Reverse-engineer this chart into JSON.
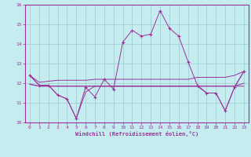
{
  "background_color": "#c5edf0",
  "grid_color": "#9ac8d0",
  "line_color": "#993399",
  "xlim": [
    -0.5,
    23.5
  ],
  "ylim": [
    10,
    16
  ],
  "xticks": [
    0,
    1,
    2,
    3,
    4,
    5,
    6,
    7,
    8,
    9,
    10,
    11,
    12,
    13,
    14,
    15,
    16,
    17,
    18,
    19,
    20,
    21,
    22,
    23
  ],
  "yticks": [
    10,
    11,
    12,
    13,
    14,
    15,
    16
  ],
  "xlabel": "Windchill (Refroidissement éolien,°C)",
  "line_main": [
    12.4,
    11.9,
    11.9,
    11.4,
    11.2,
    10.2,
    11.8,
    11.3,
    12.2,
    11.7,
    14.1,
    14.7,
    14.4,
    14.5,
    15.7,
    14.8,
    14.4,
    13.1,
    11.9,
    11.5,
    11.5,
    10.6,
    11.8,
    12.6
  ],
  "line_rising": [
    12.4,
    12.05,
    12.1,
    12.15,
    12.15,
    12.15,
    12.15,
    12.2,
    12.2,
    12.2,
    12.2,
    12.2,
    12.2,
    12.2,
    12.2,
    12.2,
    12.2,
    12.2,
    12.3,
    12.3,
    12.3,
    12.3,
    12.4,
    12.6
  ],
  "line_flat1": [
    11.95,
    11.85,
    11.85,
    11.85,
    11.85,
    11.85,
    11.85,
    11.85,
    11.85,
    11.85,
    11.85,
    11.85,
    11.85,
    11.85,
    11.85,
    11.85,
    11.85,
    11.85,
    11.85,
    11.85,
    11.85,
    11.85,
    11.85,
    11.85
  ],
  "line_flat2": [
    11.95,
    11.85,
    11.85,
    11.85,
    11.85,
    11.85,
    11.85,
    11.85,
    11.85,
    11.85,
    11.85,
    11.85,
    11.85,
    11.85,
    11.85,
    11.85,
    11.85,
    11.85,
    11.85,
    11.85,
    11.85,
    11.85,
    11.85,
    12.0
  ],
  "line_bottom": [
    12.4,
    11.9,
    11.9,
    11.4,
    11.2,
    10.2,
    11.55,
    11.85,
    11.85,
    11.85,
    11.85,
    11.85,
    11.85,
    11.85,
    11.85,
    11.85,
    11.85,
    11.85,
    11.85,
    11.5,
    11.5,
    10.6,
    11.8,
    12.6
  ]
}
